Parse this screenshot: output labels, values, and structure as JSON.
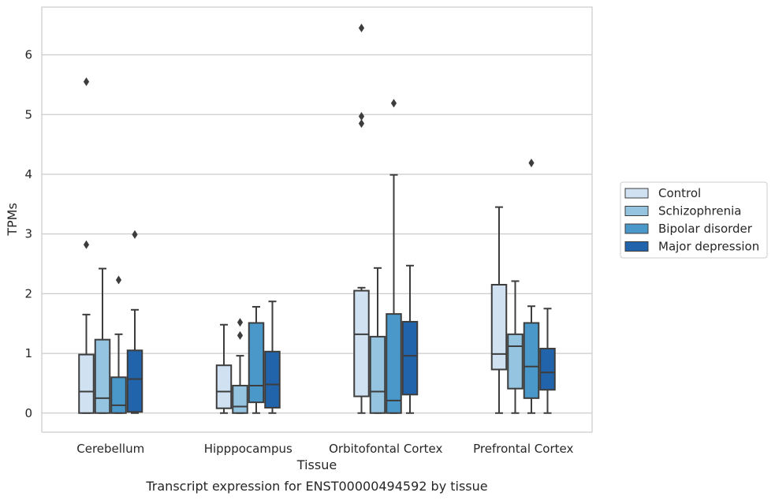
{
  "chart_data": {
    "type": "box",
    "title": "",
    "caption": "Transcript expression for ENST00000494592 by tissue",
    "xlabel": "Tissue",
    "ylabel": "TPMs",
    "ylim": [
      -0.32,
      6.8
    ],
    "yticks": [
      0,
      1,
      2,
      3,
      4,
      5,
      6
    ],
    "grid": "horizontal",
    "legend_position": "right",
    "categories": [
      "Cerebellum",
      "Hipppocampus",
      "Orbitofontal Cortex",
      "Prefrontal Cortex"
    ],
    "series": [
      {
        "name": "Control",
        "color": "#d0e1f2",
        "boxes": [
          {
            "whislo": 0.0,
            "q1": 0.0,
            "med": 0.36,
            "q3": 0.98,
            "whishi": 1.65,
            "fliers": [
              2.82,
              5.55
            ]
          },
          {
            "whislo": 0.0,
            "q1": 0.08,
            "med": 0.36,
            "q3": 0.8,
            "whishi": 1.48,
            "fliers": []
          },
          {
            "whislo": 0.0,
            "q1": 0.28,
            "med": 1.32,
            "q3": 2.05,
            "whishi": 2.1,
            "fliers": [
              4.85,
              4.97,
              6.45
            ]
          },
          {
            "whislo": 0.0,
            "q1": 0.73,
            "med": 0.99,
            "q3": 2.15,
            "whishi": 3.45,
            "fliers": []
          }
        ]
      },
      {
        "name": "Schizophrenia",
        "color": "#94c4df",
        "boxes": [
          {
            "whislo": 0.0,
            "q1": 0.0,
            "med": 0.25,
            "q3": 1.23,
            "whishi": 2.42,
            "fliers": []
          },
          {
            "whislo": 0.0,
            "q1": 0.0,
            "med": 0.11,
            "q3": 0.46,
            "whishi": 0.96,
            "fliers": [
              1.3,
              1.52
            ]
          },
          {
            "whislo": 0.0,
            "q1": 0.0,
            "med": 0.36,
            "q3": 1.28,
            "whishi": 2.43,
            "fliers": []
          },
          {
            "whislo": 0.0,
            "q1": 0.41,
            "med": 1.12,
            "q3": 1.32,
            "whishi": 2.21,
            "fliers": []
          }
        ]
      },
      {
        "name": "Bipolar disorder",
        "color": "#4a98c9",
        "boxes": [
          {
            "whislo": 0.0,
            "q1": 0.0,
            "med": 0.13,
            "q3": 0.6,
            "whishi": 1.32,
            "fliers": [
              2.23
            ]
          },
          {
            "whislo": 0.0,
            "q1": 0.18,
            "med": 0.46,
            "q3": 1.51,
            "whishi": 1.78,
            "fliers": []
          },
          {
            "whislo": 0.0,
            "q1": 0.0,
            "med": 0.21,
            "q3": 1.66,
            "whishi": 3.99,
            "fliers": [
              5.19
            ]
          },
          {
            "whislo": 0.0,
            "q1": 0.25,
            "med": 0.78,
            "q3": 1.51,
            "whishi": 1.79,
            "fliers": [
              4.19
            ]
          }
        ]
      },
      {
        "name": "Major depression",
        "color": "#2164ab",
        "boxes": [
          {
            "whislo": 0.0,
            "q1": 0.02,
            "med": 0.57,
            "q3": 1.05,
            "whishi": 1.73,
            "fliers": [
              2.99
            ]
          },
          {
            "whislo": 0.0,
            "q1": 0.09,
            "med": 0.48,
            "q3": 1.03,
            "whishi": 1.87,
            "fliers": []
          },
          {
            "whislo": 0.0,
            "q1": 0.31,
            "med": 0.96,
            "q3": 1.53,
            "whishi": 2.47,
            "fliers": []
          },
          {
            "whislo": 0.0,
            "q1": 0.39,
            "med": 0.68,
            "q3": 1.08,
            "whishi": 1.75,
            "fliers": []
          }
        ]
      }
    ]
  }
}
